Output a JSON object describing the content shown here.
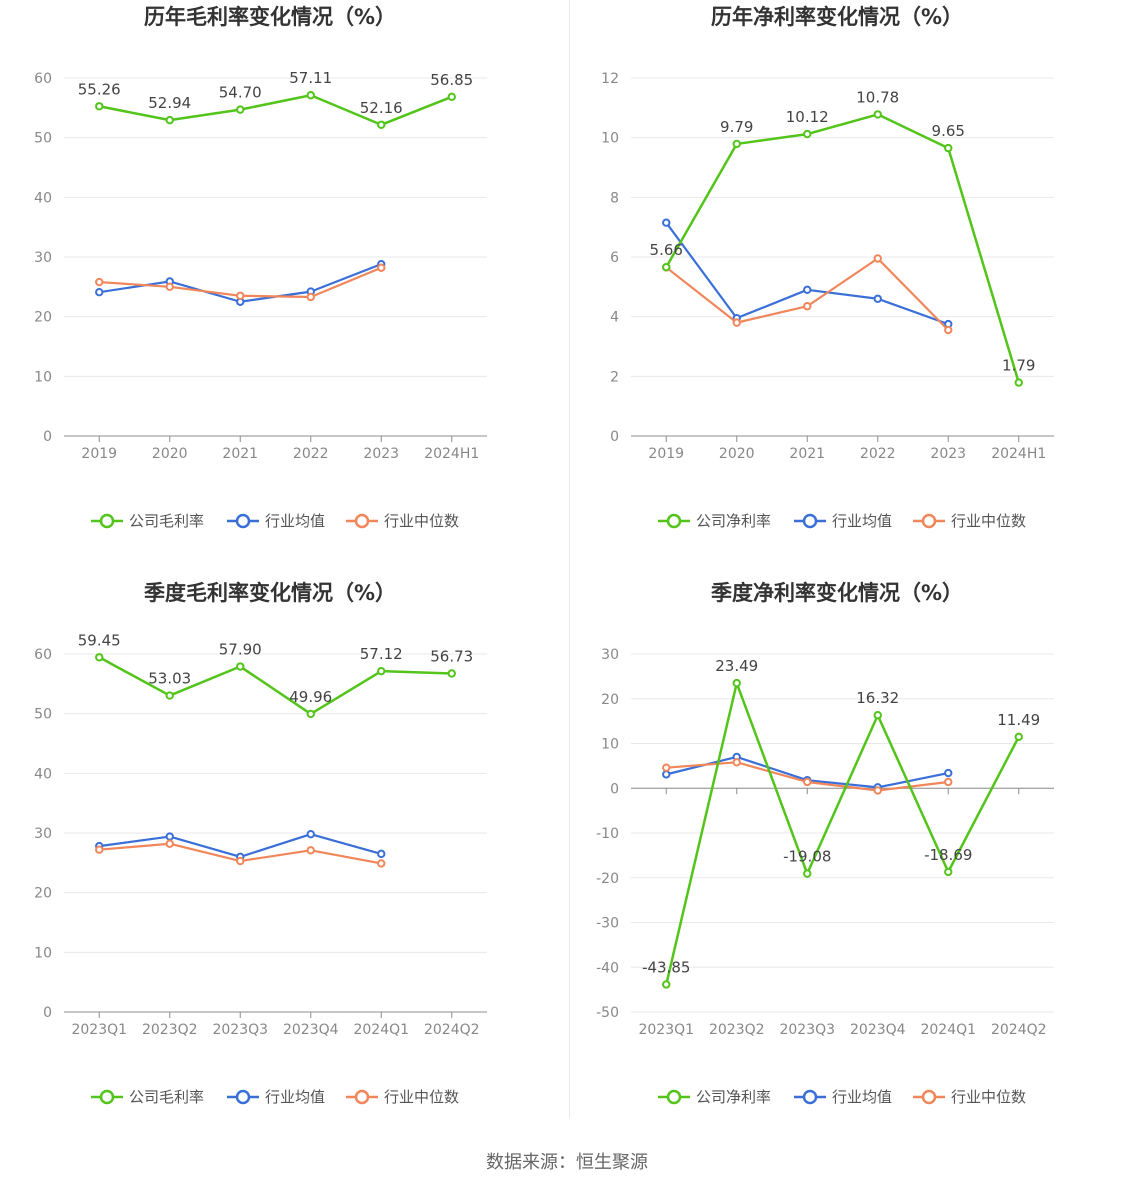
{
  "source": "数据来源：恒生聚源",
  "legend": {
    "gross_company": "公司毛利率",
    "net_company": "公司净利率",
    "industry_avg": "行业均值",
    "industry_median": "行业中位数"
  },
  "colors": {
    "company": "#52c41a",
    "avg": "#3a6fd8",
    "median": "#f0865a"
  },
  "chart_data": [
    {
      "type": "line",
      "title": "历年毛利率变化情况（%）",
      "categories": [
        "2019",
        "2020",
        "2021",
        "2022",
        "2023",
        "2024H1"
      ],
      "ylim": [
        0,
        60
      ],
      "yticks": [
        0,
        10,
        20,
        30,
        40,
        50,
        60
      ],
      "legend_key": "gross_company",
      "series": [
        {
          "name": "公司毛利率",
          "key": "company",
          "values": [
            55.26,
            52.94,
            54.7,
            57.11,
            52.16,
            56.85
          ],
          "labels": [
            "55.26",
            "52.94",
            "54.70",
            "57.11",
            "52.16",
            "56.85"
          ]
        },
        {
          "name": "行业均值",
          "key": "avg",
          "values": [
            24.1,
            25.9,
            22.5,
            24.2,
            28.8,
            null
          ]
        },
        {
          "name": "行业中位数",
          "key": "median",
          "values": [
            25.8,
            25.0,
            23.5,
            23.3,
            28.2,
            null
          ]
        }
      ]
    },
    {
      "type": "line",
      "title": "历年净利率变化情况（%）",
      "categories": [
        "2019",
        "2020",
        "2021",
        "2022",
        "2023",
        "2024H1"
      ],
      "ylim": [
        0,
        12
      ],
      "yticks": [
        0,
        2,
        4,
        6,
        8,
        10,
        12
      ],
      "legend_key": "net_company",
      "series": [
        {
          "name": "公司净利率",
          "key": "company",
          "values": [
            5.66,
            9.79,
            10.12,
            10.78,
            9.65,
            1.79
          ],
          "labels": [
            "5.66",
            "9.79",
            "10.12",
            "10.78",
            "9.65",
            "1.79"
          ]
        },
        {
          "name": "行业均值",
          "key": "avg",
          "values": [
            7.15,
            3.95,
            4.9,
            4.6,
            3.75,
            null
          ]
        },
        {
          "name": "行业中位数",
          "key": "median",
          "values": [
            5.65,
            3.8,
            4.35,
            5.95,
            3.55,
            null
          ]
        }
      ]
    },
    {
      "type": "line",
      "title": "季度毛利率变化情况（%）",
      "categories": [
        "2023Q1",
        "2023Q2",
        "2023Q3",
        "2023Q4",
        "2024Q1",
        "2024Q2"
      ],
      "ylim": [
        0,
        60
      ],
      "yticks": [
        0,
        10,
        20,
        30,
        40,
        50,
        60
      ],
      "legend_key": "gross_company",
      "series": [
        {
          "name": "公司毛利率",
          "key": "company",
          "values": [
            59.45,
            53.03,
            57.9,
            49.96,
            57.12,
            56.73
          ],
          "labels": [
            "59.45",
            "53.03",
            "57.90",
            "49.96",
            "57.12",
            "56.73"
          ]
        },
        {
          "name": "行业均值",
          "key": "avg",
          "values": [
            27.8,
            29.4,
            26.0,
            29.8,
            26.5,
            null
          ]
        },
        {
          "name": "行业中位数",
          "key": "median",
          "values": [
            27.2,
            28.2,
            25.3,
            27.1,
            24.9,
            null
          ]
        }
      ]
    },
    {
      "type": "line",
      "title": "季度净利率变化情况（%）",
      "categories": [
        "2023Q1",
        "2023Q2",
        "2023Q3",
        "2023Q4",
        "2024Q1",
        "2024Q2"
      ],
      "ylim": [
        -50,
        30
      ],
      "yticks": [
        -50,
        -40,
        -30,
        -20,
        -10,
        0,
        10,
        20,
        30
      ],
      "legend_key": "net_company",
      "series": [
        {
          "name": "公司净利率",
          "key": "company",
          "values": [
            -43.85,
            23.49,
            -19.08,
            16.32,
            -18.69,
            11.49
          ],
          "labels": [
            "-43.85",
            "23.49",
            "-19.08",
            "16.32",
            "-18.69",
            "11.49"
          ]
        },
        {
          "name": "行业均值",
          "key": "avg",
          "values": [
            3.1,
            7.0,
            1.8,
            0.2,
            3.4,
            null
          ]
        },
        {
          "name": "行业中位数",
          "key": "median",
          "values": [
            4.6,
            5.8,
            1.4,
            -0.5,
            1.4,
            null
          ]
        }
      ]
    }
  ]
}
